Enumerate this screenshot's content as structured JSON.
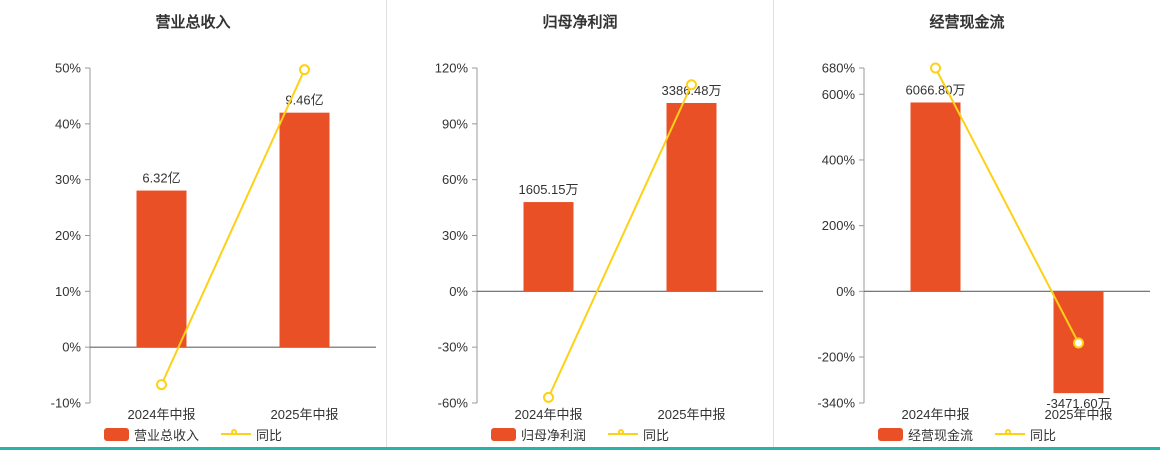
{
  "colors": {
    "bar": "#e95025",
    "line": "#fdd118",
    "axis": "#999999",
    "zero_line": "#666666",
    "text": "#333333",
    "divider": "#e0e0e0",
    "accent_strip": "#26b4a9"
  },
  "chart_data": [
    {
      "type": "bar",
      "title": "营业总收入",
      "categories": [
        "2024年中报",
        "2025年中报"
      ],
      "bar_series": {
        "name": "营业总收入",
        "value_labels": [
          "6.32亿",
          "9.46亿"
        ],
        "axis_values": [
          28.05,
          42.0
        ]
      },
      "line_series": {
        "name": "同比",
        "values": [
          -6.7,
          49.7
        ]
      },
      "ylim": [
        -10,
        50
      ],
      "yticks": [
        50,
        40,
        30,
        20,
        10,
        0,
        -10
      ],
      "ytick_labels": [
        "50%",
        "40%",
        "30%",
        "20%",
        "10%",
        "0%",
        "-10%"
      ],
      "legend_position": "bottom",
      "grid": false
    },
    {
      "type": "bar",
      "title": "归母净利润",
      "categories": [
        "2024年中报",
        "2025年中报"
      ],
      "bar_series": {
        "name": "归母净利润",
        "value_labels": [
          "1605.15万",
          "3386.48万"
        ],
        "axis_values": [
          47.96,
          101.2
        ]
      },
      "line_series": {
        "name": "同比",
        "values": [
          -57.0,
          111.0
        ]
      },
      "ylim": [
        -60,
        120
      ],
      "yticks": [
        120,
        90,
        60,
        30,
        0,
        -30,
        -60
      ],
      "ytick_labels": [
        "120%",
        "90%",
        "60%",
        "30%",
        "0%",
        "-30%",
        "-60%"
      ],
      "legend_position": "bottom",
      "grid": false
    },
    {
      "type": "bar",
      "title": "经营现金流",
      "categories": [
        "2024年中报",
        "2025年中报"
      ],
      "bar_series": {
        "name": "经营现金流",
        "value_labels": [
          "6066.80万",
          "-3471.60万"
        ],
        "axis_values": [
          575.0,
          -310.0
        ]
      },
      "line_series": {
        "name": "同比",
        "values": [
          680.0,
          -157.2
        ]
      },
      "ylim": [
        -340,
        680
      ],
      "yticks": [
        680,
        600,
        400,
        200,
        0,
        -200,
        -340
      ],
      "ytick_labels": [
        "680%",
        "600%",
        "400%",
        "200%",
        "0%",
        "-200%",
        "-340%"
      ],
      "legend_position": "bottom",
      "grid": false
    }
  ]
}
